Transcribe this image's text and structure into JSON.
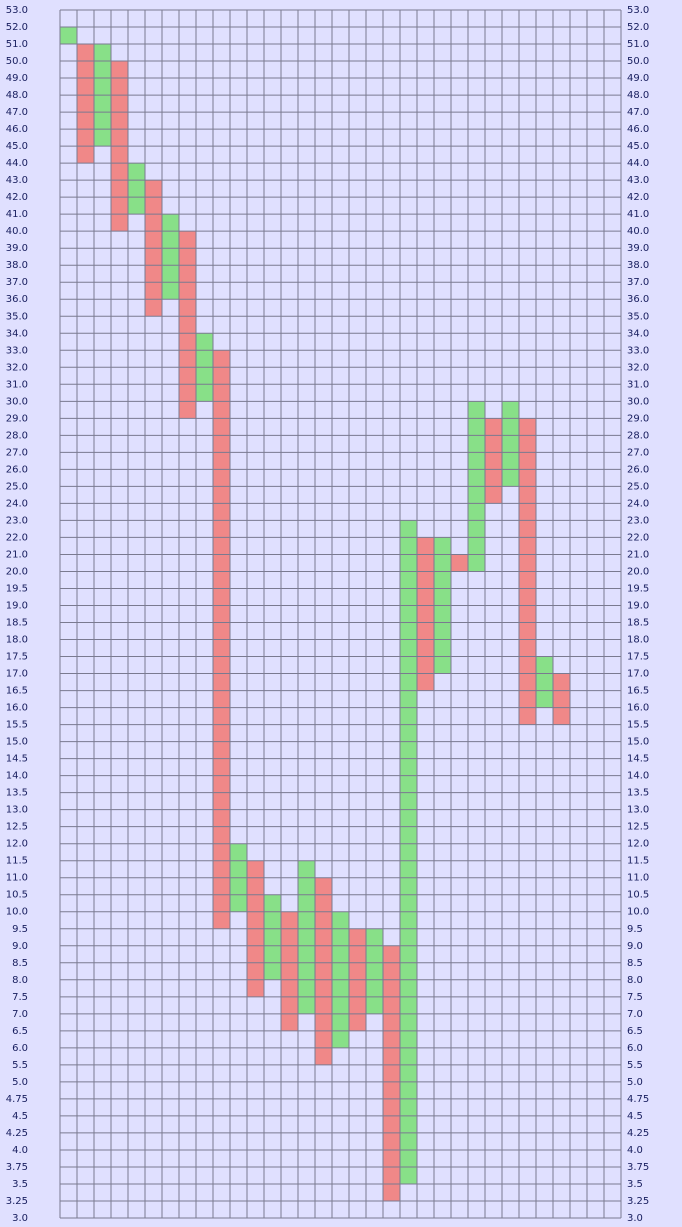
{
  "chart_data": {
    "type": "point-figure",
    "yticks": [
      {
        "value": 53,
        "label": "53.0"
      },
      {
        "value": 52,
        "label": "52.0"
      },
      {
        "value": 51,
        "label": "51.0"
      },
      {
        "value": 50,
        "label": "50.0"
      },
      {
        "value": 49,
        "label": "49.0"
      },
      {
        "value": 48,
        "label": "48.0"
      },
      {
        "value": 47,
        "label": "47.0"
      },
      {
        "value": 46,
        "label": "46.0"
      },
      {
        "value": 45,
        "label": "45.0"
      },
      {
        "value": 44,
        "label": "44.0"
      },
      {
        "value": 43,
        "label": "43.0"
      },
      {
        "value": 42,
        "label": "42.0"
      },
      {
        "value": 41,
        "label": "41.0"
      },
      {
        "value": 40,
        "label": "40.0"
      },
      {
        "value": 39,
        "label": "39.0"
      },
      {
        "value": 38,
        "label": "38.0"
      },
      {
        "value": 37,
        "label": "37.0"
      },
      {
        "value": 36,
        "label": "36.0"
      },
      {
        "value": 35,
        "label": "35.0"
      },
      {
        "value": 34,
        "label": "34.0"
      },
      {
        "value": 33,
        "label": "33.0"
      },
      {
        "value": 32,
        "label": "32.0"
      },
      {
        "value": 31,
        "label": "31.0"
      },
      {
        "value": 30,
        "label": "30.0"
      },
      {
        "value": 29,
        "label": "29.0"
      },
      {
        "value": 28,
        "label": "28.0"
      },
      {
        "value": 27,
        "label": "27.0"
      },
      {
        "value": 26,
        "label": "26.0"
      },
      {
        "value": 25,
        "label": "25.0"
      },
      {
        "value": 24,
        "label": "24.0"
      },
      {
        "value": 23,
        "label": "23.0"
      },
      {
        "value": 22,
        "label": "22.0"
      },
      {
        "value": 21,
        "label": "21.0"
      },
      {
        "value": 20,
        "label": "20.0"
      },
      19.5,
      {
        "value": 19,
        "label": "19.0"
      },
      18.5,
      {
        "value": 18,
        "label": "18.0"
      },
      17.5,
      {
        "value": 17,
        "label": "17.0"
      },
      16.5,
      {
        "value": 16,
        "label": "16.0"
      },
      15.5,
      {
        "value": 15,
        "label": "15.0"
      },
      14.5,
      {
        "value": 14,
        "label": "14.0"
      },
      13.5,
      {
        "value": 13,
        "label": "13.0"
      },
      12.5,
      {
        "value": 12,
        "label": "12.0"
      },
      11.5,
      {
        "value": 11,
        "label": "11.0"
      },
      10.5,
      {
        "value": 10,
        "label": "10.0"
      },
      9.5,
      {
        "value": 9,
        "label": "9.0"
      },
      8.5,
      {
        "value": 8,
        "label": "8.0"
      },
      7.5,
      {
        "value": 7,
        "label": "7.0"
      },
      6.5,
      {
        "value": 6,
        "label": "6.0"
      },
      5.5,
      {
        "value": 5,
        "label": "5.0"
      },
      4.75,
      4.5,
      4.25,
      {
        "value": 4,
        "label": "4.0"
      },
      3.75,
      3.5,
      3.25,
      {
        "value": 3,
        "label": "3.0"
      }
    ],
    "up_color": "#88e088",
    "down_color": "#f08888",
    "columns": [
      {
        "dir": "up",
        "top": 52,
        "bottom": 51
      },
      {
        "dir": "down",
        "top": 51,
        "bottom": 44
      },
      {
        "dir": "up",
        "top": 51,
        "bottom": 45
      },
      {
        "dir": "down",
        "top": 50,
        "bottom": 40
      },
      {
        "dir": "up",
        "top": 44,
        "bottom": 41
      },
      {
        "dir": "down",
        "top": 43,
        "bottom": 35
      },
      {
        "dir": "up",
        "top": 41,
        "bottom": 36
      },
      {
        "dir": "down",
        "top": 40,
        "bottom": 29
      },
      {
        "dir": "up",
        "top": 34,
        "bottom": 30
      },
      {
        "dir": "down",
        "top": 33,
        "bottom": 9.5
      },
      {
        "dir": "up",
        "top": 12,
        "bottom": 10
      },
      {
        "dir": "down",
        "top": 11.5,
        "bottom": 7.5
      },
      {
        "dir": "up",
        "top": 10.5,
        "bottom": 8
      },
      {
        "dir": "down",
        "top": 10,
        "bottom": 6.5
      },
      {
        "dir": "up",
        "top": 11.5,
        "bottom": 7
      },
      {
        "dir": "down",
        "top": 11,
        "bottom": 5.5
      },
      {
        "dir": "up",
        "top": 10,
        "bottom": 6
      },
      {
        "dir": "down",
        "top": 9.5,
        "bottom": 6.5
      },
      {
        "dir": "up",
        "top": 9.5,
        "bottom": 7
      },
      {
        "dir": "down",
        "top": 9,
        "bottom": 3.25
      },
      {
        "dir": "up",
        "top": 23,
        "bottom": 3.5
      },
      {
        "dir": "down",
        "top": 22,
        "bottom": 16.5
      },
      {
        "dir": "up",
        "top": 22,
        "bottom": 17
      },
      {
        "dir": "down",
        "top": 21,
        "bottom": 20
      },
      {
        "dir": "up",
        "top": 30,
        "bottom": 20
      },
      {
        "dir": "down",
        "top": 29,
        "bottom": 24
      },
      {
        "dir": "up",
        "top": 30,
        "bottom": 25
      },
      {
        "dir": "down",
        "top": 29,
        "bottom": 15.5
      },
      {
        "dir": "up",
        "top": 17.5,
        "bottom": 16
      },
      {
        "dir": "down",
        "top": 17,
        "bottom": 15.5
      }
    ]
  }
}
